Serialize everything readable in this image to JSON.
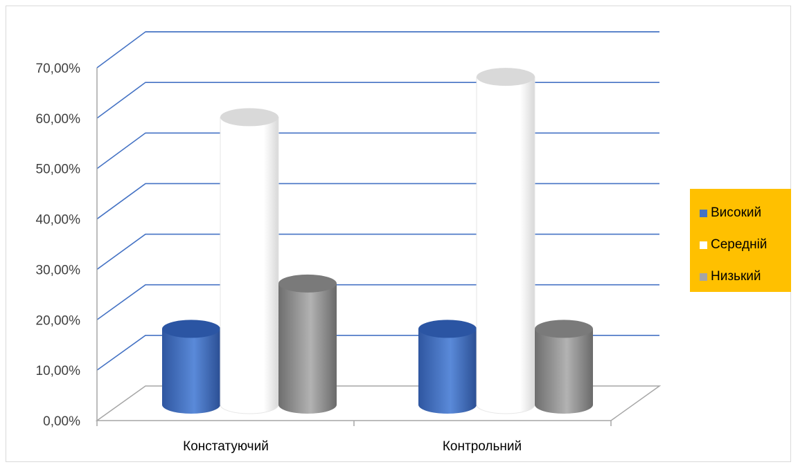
{
  "chart_data": {
    "type": "bar",
    "style": "3d-cylinder",
    "categories": [
      "Констатуючий",
      "Контрольний"
    ],
    "series": [
      {
        "name": "Високий",
        "values": [
          0.16,
          0.16
        ],
        "color": "#4472c4"
      },
      {
        "name": "Середній",
        "values": [
          0.58,
          0.66
        ],
        "color": "#ffffff"
      },
      {
        "name": "Низький",
        "values": [
          0.25,
          0.16
        ],
        "color": "#a5a5a5"
      }
    ],
    "ylim": [
      0,
      0.7
    ],
    "yticks": [
      "0,00%",
      "10,00%",
      "20,00%",
      "30,00%",
      "40,00%",
      "50,00%",
      "60,00%",
      "70,00%"
    ],
    "grid": true,
    "grid_color": "#4472c4",
    "legend_position": "right",
    "legend_background": "#ffc000"
  }
}
